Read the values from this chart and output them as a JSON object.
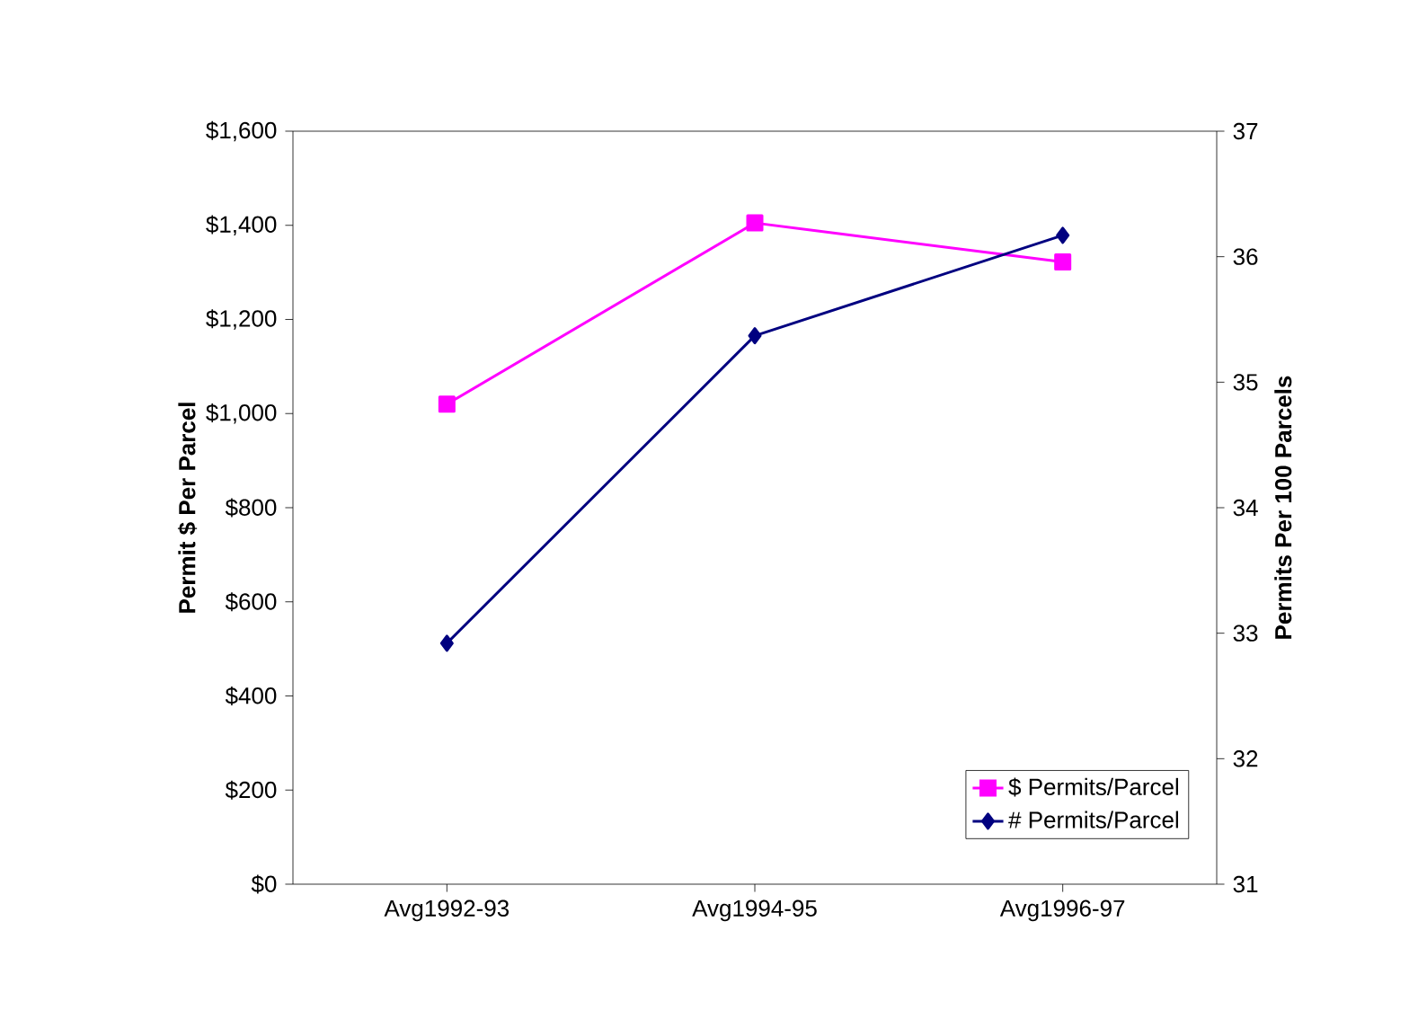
{
  "chart_data": {
    "type": "line",
    "categories": [
      "Avg1992-93",
      "Avg1994-95",
      "Avg1996-97"
    ],
    "series": [
      {
        "name": "$ Permits/Parcel",
        "color": "#ff00ff",
        "values": [
          1020,
          1405,
          1322
        ],
        "marker": "square"
      },
      {
        "name": "# Permits/Parcel",
        "color": "#000080",
        "values": [
          32.92,
          35.37,
          36.17
        ],
        "marker": "diamond",
        "axis": "y2"
      }
    ],
    "ylabel": "Permit $ Per Parcel",
    "y2label": "Permits Per 100 Parcels",
    "ylim": [
      0,
      1600
    ],
    "yticks": [
      {
        "value": 0,
        "label": "$0"
      },
      {
        "value": 200,
        "label": "$200"
      },
      {
        "value": 400,
        "label": "$400"
      },
      {
        "value": 600,
        "label": "$600"
      },
      {
        "value": 800,
        "label": "$800"
      },
      {
        "value": 1000,
        "label": "$1,000"
      },
      {
        "value": 1200,
        "label": "$1,200"
      },
      {
        "value": 1400,
        "label": "$1,400"
      },
      {
        "value": 1600,
        "label": "$1,600"
      }
    ],
    "y2lim": [
      31,
      37
    ],
    "y2ticks": [
      31,
      32,
      33,
      34,
      35,
      36,
      37
    ],
    "legend": "bottom right"
  }
}
